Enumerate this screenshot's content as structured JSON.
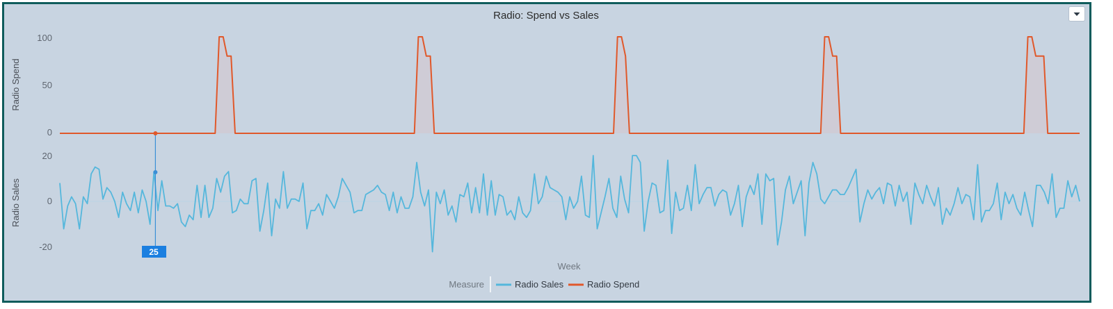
{
  "menu": {
    "icon": "chevron-down-icon"
  },
  "chart_data": {
    "type": "line",
    "title": "Radio: Spend vs Sales",
    "xlabel": "Week",
    "x_range": [
      1,
      257
    ],
    "colors": {
      "Radio Sales": "#55b7dc",
      "Radio Spend": "#e0582a",
      "background": "#c8d4e1"
    },
    "legend": {
      "title": "Measure",
      "position": "bottom-center",
      "entries": [
        "Radio Sales",
        "Radio Spend"
      ]
    },
    "hover": {
      "x_label": "25"
    },
    "panels": [
      {
        "ylabel": "Radio Spend",
        "ylim": [
          0,
          100
        ],
        "yticks": [
          0,
          50,
          100
        ],
        "ytick_labels": [
          "0",
          "50",
          "100"
        ],
        "series": [
          {
            "name": "Radio Spend",
            "fill_area": true,
            "baseline": 0,
            "x": [
              1,
              40,
              41,
              42,
              43,
              44,
              45,
              46,
              90,
              91,
              92,
              93,
              94,
              95,
              140,
              141,
              142,
              143,
              144,
              145,
              192,
              193,
              194,
              195,
              196,
              197,
              243,
              244,
              245,
              246,
              247,
              248,
              249,
              257
            ],
            "values": [
              0,
              0,
              100,
              100,
              80,
              80,
              0,
              0,
              0,
              100,
              100,
              80,
              80,
              0,
              0,
              100,
              100,
              80,
              0,
              0,
              0,
              100,
              100,
              80,
              80,
              0,
              0,
              100,
              100,
              80,
              80,
              80,
              0,
              0
            ]
          }
        ]
      },
      {
        "ylabel": "Radio Sales",
        "ylim": [
          -25,
          20
        ],
        "yticks": [
          -20,
          0,
          20
        ],
        "ytick_labels": [
          "-20",
          "0",
          "20"
        ],
        "series": [
          {
            "name": "Radio Sales",
            "x_start": 1,
            "x_end": 257,
            "values": [
              8,
              -12,
              -2,
              2,
              -1,
              -12,
              2,
              -1,
              12,
              15,
              14,
              1,
              6,
              4,
              0,
              -7,
              4,
              -1,
              -4,
              4,
              -5,
              5,
              0,
              -10,
              13,
              -4,
              9,
              -2,
              -2,
              -3,
              -1,
              -9,
              -11,
              -6,
              -8,
              7,
              -7,
              7,
              -7,
              -3,
              10,
              4,
              11,
              13,
              -5,
              -4,
              1,
              -1,
              -1,
              9,
              10,
              -13,
              -4,
              8,
              -15,
              1,
              -3,
              13,
              -3,
              1,
              1,
              0,
              8,
              -12,
              -4,
              -4,
              -1,
              -6,
              3,
              0,
              -3,
              2,
              10,
              7,
              4,
              -5,
              -4,
              -4,
              3,
              4,
              5,
              7,
              4,
              3,
              -4,
              4,
              -5,
              2,
              -3,
              -3,
              2,
              17,
              4,
              -2,
              5,
              -22,
              4,
              -1,
              5,
              -6,
              -2,
              -9,
              3,
              2,
              8,
              -5,
              6,
              -5,
              12,
              -6,
              9,
              -6,
              3,
              2,
              -6,
              -4,
              -8,
              2,
              -5,
              -7,
              -4,
              12,
              -1,
              2,
              11,
              6,
              5,
              4,
              2,
              -8,
              2,
              -3,
              0,
              11,
              -6,
              -7,
              20,
              -12,
              -5,
              2,
              10,
              -3,
              -7,
              11,
              1,
              -5,
              20,
              20,
              17,
              -13,
              0,
              8,
              7,
              -5,
              -4,
              18,
              -14,
              4,
              -4,
              -3,
              7,
              -4,
              16,
              -1,
              3,
              6,
              6,
              -2,
              3,
              5,
              4,
              -6,
              -1,
              7,
              -11,
              2,
              7,
              3,
              12,
              -10,
              12,
              9,
              10,
              -19,
              -9,
              5,
              11,
              -1,
              4,
              9,
              -15,
              8,
              17,
              12,
              1,
              -1,
              2,
              5,
              5,
              3,
              3,
              6,
              10,
              14,
              -9,
              -1,
              5,
              1,
              4,
              6,
              -1,
              8,
              7,
              -2,
              7,
              0,
              4,
              -10,
              8,
              3,
              -1,
              7,
              2,
              -2,
              6,
              -10,
              -3,
              -6,
              -1,
              6,
              -1,
              3,
              2,
              -8,
              16,
              -9,
              -4,
              -4,
              -1,
              8,
              -8,
              4,
              -1,
              3,
              -3,
              -6,
              4,
              -4,
              -11,
              7,
              7,
              4,
              -1,
              12,
              -7,
              -3,
              -3,
              9,
              2,
              7,
              0
            ]
          }
        ]
      }
    ]
  }
}
